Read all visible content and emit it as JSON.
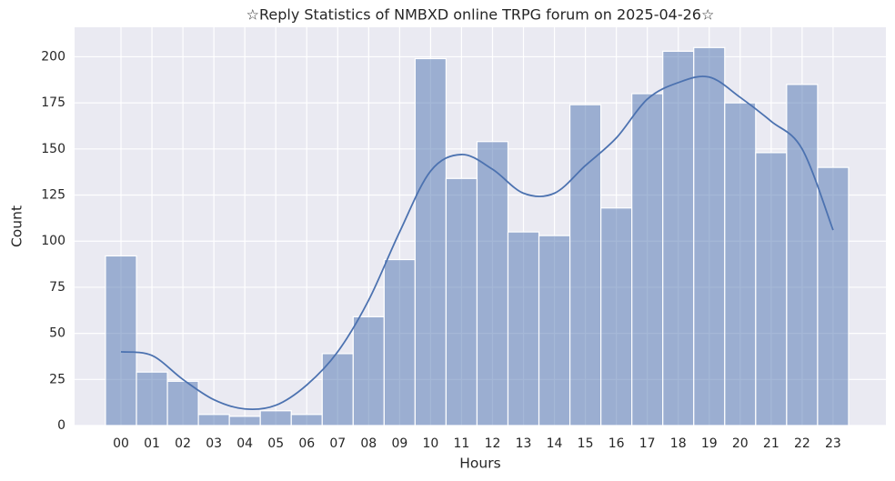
{
  "chart_data": {
    "type": "bar",
    "title": "☆Reply Statistics of NMBXD online TRPG forum on 2025-04-26☆",
    "x_label": "Hours",
    "y_label": "Count",
    "categories": [
      "00",
      "01",
      "02",
      "03",
      "04",
      "05",
      "06",
      "07",
      "08",
      "09",
      "10",
      "11",
      "12",
      "13",
      "14",
      "15",
      "16",
      "17",
      "18",
      "19",
      "20",
      "21",
      "22",
      "23"
    ],
    "values": [
      92,
      29,
      24,
      6,
      5,
      8,
      6,
      39,
      59,
      90,
      199,
      134,
      154,
      105,
      103,
      174,
      118,
      180,
      203,
      205,
      175,
      148,
      185,
      140
    ],
    "color": "#4c72b0",
    "kde": {
      "type": "line",
      "color": "#4c72b0",
      "values": [
        40,
        38,
        25,
        14,
        9,
        11,
        22,
        40,
        68,
        105,
        138,
        147,
        139,
        126,
        126,
        141,
        156,
        177,
        186,
        189,
        178,
        165,
        150,
        106
      ]
    },
    "ylim": [
      0,
      216
    ],
    "yticks": [
      0,
      25,
      50,
      75,
      100,
      125,
      150,
      175,
      200
    ],
    "grid": true
  }
}
